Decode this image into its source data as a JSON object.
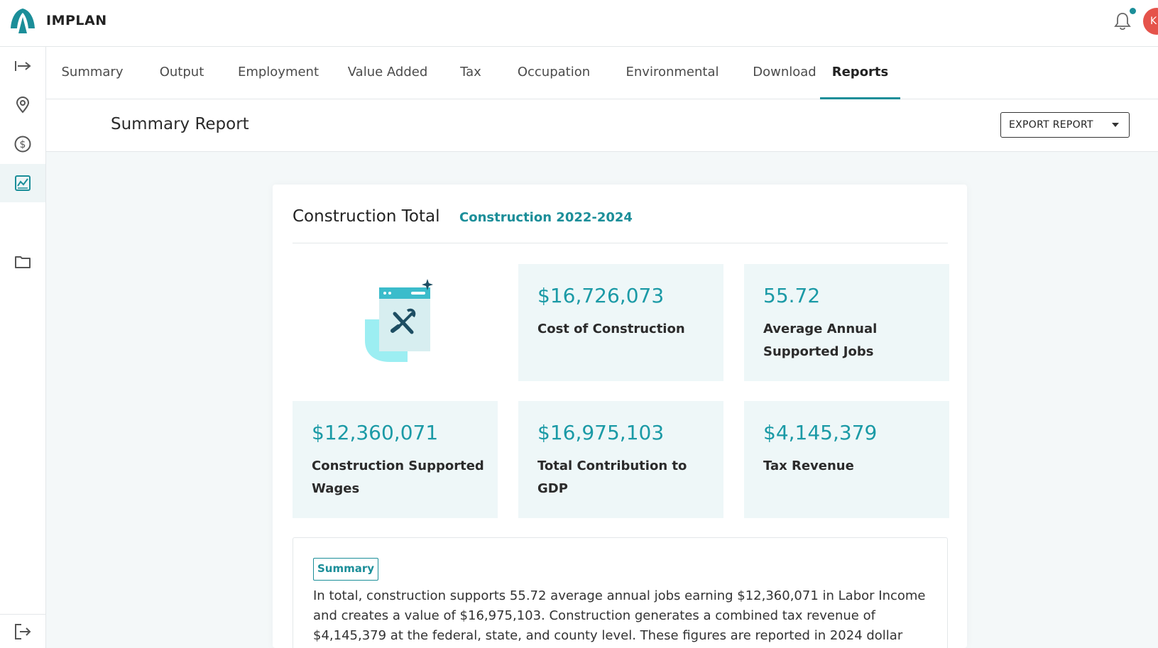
{
  "app": {
    "brand": "IMPLAN"
  },
  "header": {
    "avatar_initial": "K"
  },
  "rail": {
    "icons": [
      "arrow-right-bar-icon",
      "location-pin-icon",
      "dollar-circle-icon",
      "chart-icon",
      "folder-icon",
      "logout-icon"
    ],
    "active": "chart-icon"
  },
  "tabs": [
    {
      "label": "Summary"
    },
    {
      "label": "Output"
    },
    {
      "label": "Employment"
    },
    {
      "label": "Value Added"
    },
    {
      "label": "Tax"
    },
    {
      "label": "Occupation"
    },
    {
      "label": "Environmental"
    },
    {
      "label": "Download"
    },
    {
      "label": "Reports"
    }
  ],
  "active_tab": "Reports",
  "page": {
    "title": "Summary Report",
    "export_label": "EXPORT REPORT"
  },
  "report": {
    "title": "Construction Total",
    "subtitle": "Construction 2022-2024",
    "stats": [
      {
        "value": "$16,726,073",
        "label": "Cost of Construction"
      },
      {
        "value": "55.72",
        "label": "Average Annual Supported Jobs"
      },
      {
        "value": "$12,360,071",
        "label": "Construction Supported Wages"
      },
      {
        "value": "$16,975,103",
        "label": "Total Contribution to GDP"
      },
      {
        "value": "$4,145,379",
        "label": "Tax Revenue"
      }
    ],
    "summary_badge": "Summary",
    "summary_text": "In total, construction supports 55.72 average annual jobs earning $12,360,071 in Labor Income and creates a value of $16,975,103. Construction generates a combined tax revenue of $4,145,379 at the federal, state, and county level. These figures are reported in 2024 dollar"
  },
  "colors": {
    "accent": "#1b8e99",
    "stat_value": "#1b9aa6",
    "stat_bg": "#eef7f8",
    "avatar": "#e5534b"
  }
}
